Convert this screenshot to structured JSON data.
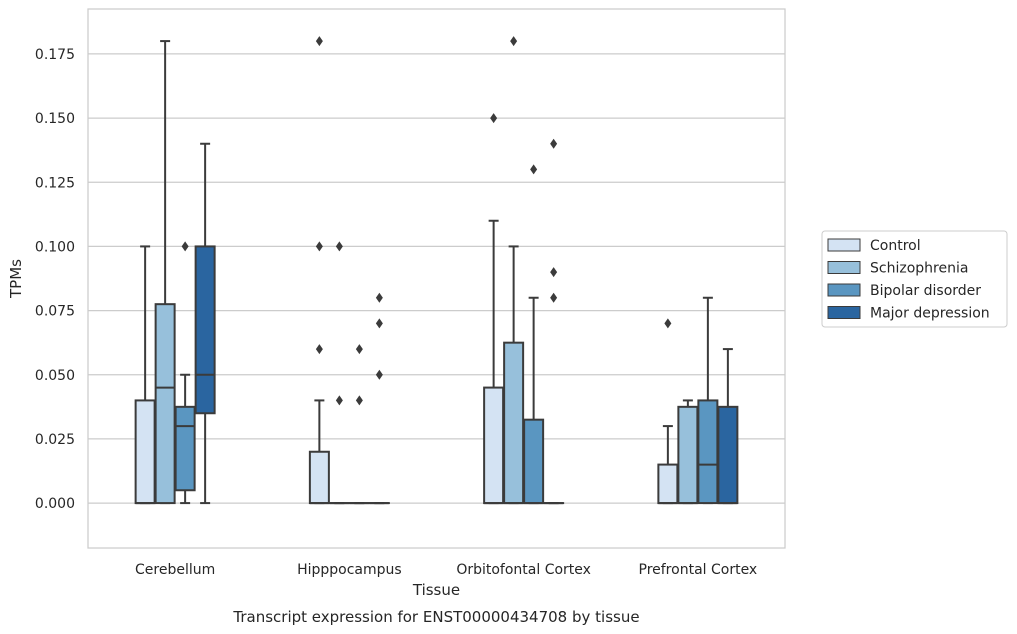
{
  "chart_data": {
    "type": "boxplot",
    "title": "Transcript expression for ENST00000434708 by tissue",
    "xlabel": "Tissue",
    "ylabel": "TPMs",
    "ylim": [
      -0.0175,
      0.1925
    ],
    "yticks": [
      "0.000",
      "0.025",
      "0.050",
      "0.075",
      "0.100",
      "0.125",
      "0.150",
      "0.175"
    ],
    "grid": "horizontal",
    "legend_position": "right",
    "categories": [
      "Cerebellum",
      "Hipppocampus",
      "Orbitofontal Cortex",
      "Prefrontal Cortex"
    ],
    "series": [
      {
        "name": "Control",
        "color": "#d4e3f3",
        "boxes": [
          {
            "min": 0.0,
            "q1": 0.0,
            "median": 0.0,
            "q3": 0.04,
            "max": 0.1,
            "outliers": []
          },
          {
            "min": 0.0,
            "q1": 0.0,
            "median": 0.0,
            "q3": 0.02,
            "max": 0.04,
            "outliers": [
              0.06,
              0.1,
              0.18
            ]
          },
          {
            "min": 0.0,
            "q1": 0.0,
            "median": 0.0,
            "q3": 0.045,
            "max": 0.11,
            "outliers": [
              0.15
            ]
          },
          {
            "min": 0.0,
            "q1": 0.0,
            "median": 0.0,
            "q3": 0.015,
            "max": 0.03,
            "outliers": [
              0.07
            ]
          }
        ]
      },
      {
        "name": "Schizophrenia",
        "color": "#97c0db",
        "boxes": [
          {
            "min": 0.0,
            "q1": 0.0,
            "median": 0.045,
            "q3": 0.0775,
            "max": 0.18,
            "outliers": []
          },
          {
            "min": 0.0,
            "q1": 0.0,
            "median": 0.0,
            "q3": 0.0,
            "max": 0.0,
            "outliers": [
              0.04,
              0.1
            ]
          },
          {
            "min": 0.0,
            "q1": 0.0,
            "median": 0.0,
            "q3": 0.0625,
            "max": 0.1,
            "outliers": [
              0.18
            ]
          },
          {
            "min": 0.0,
            "q1": 0.0,
            "median": 0.0,
            "q3": 0.0375,
            "max": 0.04,
            "outliers": []
          }
        ]
      },
      {
        "name": "Bipolar disorder",
        "color": "#5a96c1",
        "boxes": [
          {
            "min": 0.0,
            "q1": 0.005,
            "median": 0.03,
            "q3": 0.0375,
            "max": 0.05,
            "outliers": [
              0.1
            ]
          },
          {
            "min": 0.0,
            "q1": 0.0,
            "median": 0.0,
            "q3": 0.0,
            "max": 0.0,
            "outliers": [
              0.04,
              0.06
            ]
          },
          {
            "min": 0.0,
            "q1": 0.0,
            "median": 0.0,
            "q3": 0.0325,
            "max": 0.08,
            "outliers": [
              0.13
            ]
          },
          {
            "min": 0.0,
            "q1": 0.0,
            "median": 0.015,
            "q3": 0.04,
            "max": 0.08,
            "outliers": []
          }
        ]
      },
      {
        "name": "Major depression",
        "color": "#2a65a0",
        "boxes": [
          {
            "min": 0.0,
            "q1": 0.035,
            "median": 0.05,
            "q3": 0.1,
            "max": 0.14,
            "outliers": []
          },
          {
            "min": 0.0,
            "q1": 0.0,
            "median": 0.0,
            "q3": 0.0,
            "max": 0.0,
            "outliers": [
              0.05,
              0.07,
              0.08
            ]
          },
          {
            "min": 0.0,
            "q1": 0.0,
            "median": 0.0,
            "q3": 0.0,
            "max": 0.0,
            "outliers": [
              0.08,
              0.09,
              0.14
            ]
          },
          {
            "min": 0.0,
            "q1": 0.0,
            "median": 0.0,
            "q3": 0.0375,
            "max": 0.06,
            "outliers": []
          }
        ]
      }
    ]
  }
}
